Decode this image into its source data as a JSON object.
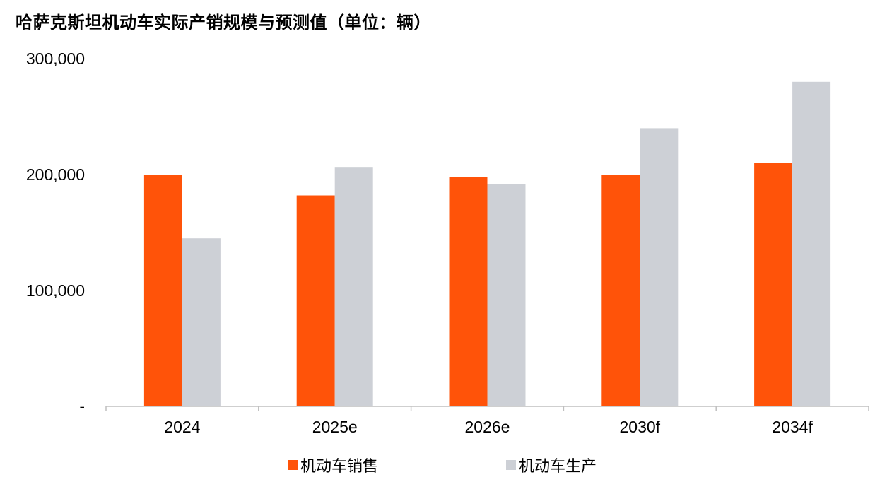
{
  "chart_data": {
    "type": "bar",
    "title": "哈萨克斯坦机动车实际产销规模与预测值（单位：辆）",
    "categories": [
      "2024",
      "2025e",
      "2026e",
      "2030f",
      "2034f"
    ],
    "series": [
      {
        "name": "机动车销售",
        "color": "#FF5309",
        "values": [
          200000,
          182000,
          198000,
          200000,
          210000
        ]
      },
      {
        "name": "机动车生产",
        "color": "#CDD0D6",
        "values": [
          145000,
          206000,
          192000,
          240000,
          280000
        ]
      }
    ],
    "ylim": [
      0,
      300000
    ],
    "yticks": [
      0,
      100000,
      200000,
      300000
    ],
    "ytick_labels": [
      "-",
      "100,000",
      "200,000",
      "300,000"
    ],
    "xlabel": "",
    "ylabel": "",
    "grid": false,
    "legend_position": "bottom"
  }
}
